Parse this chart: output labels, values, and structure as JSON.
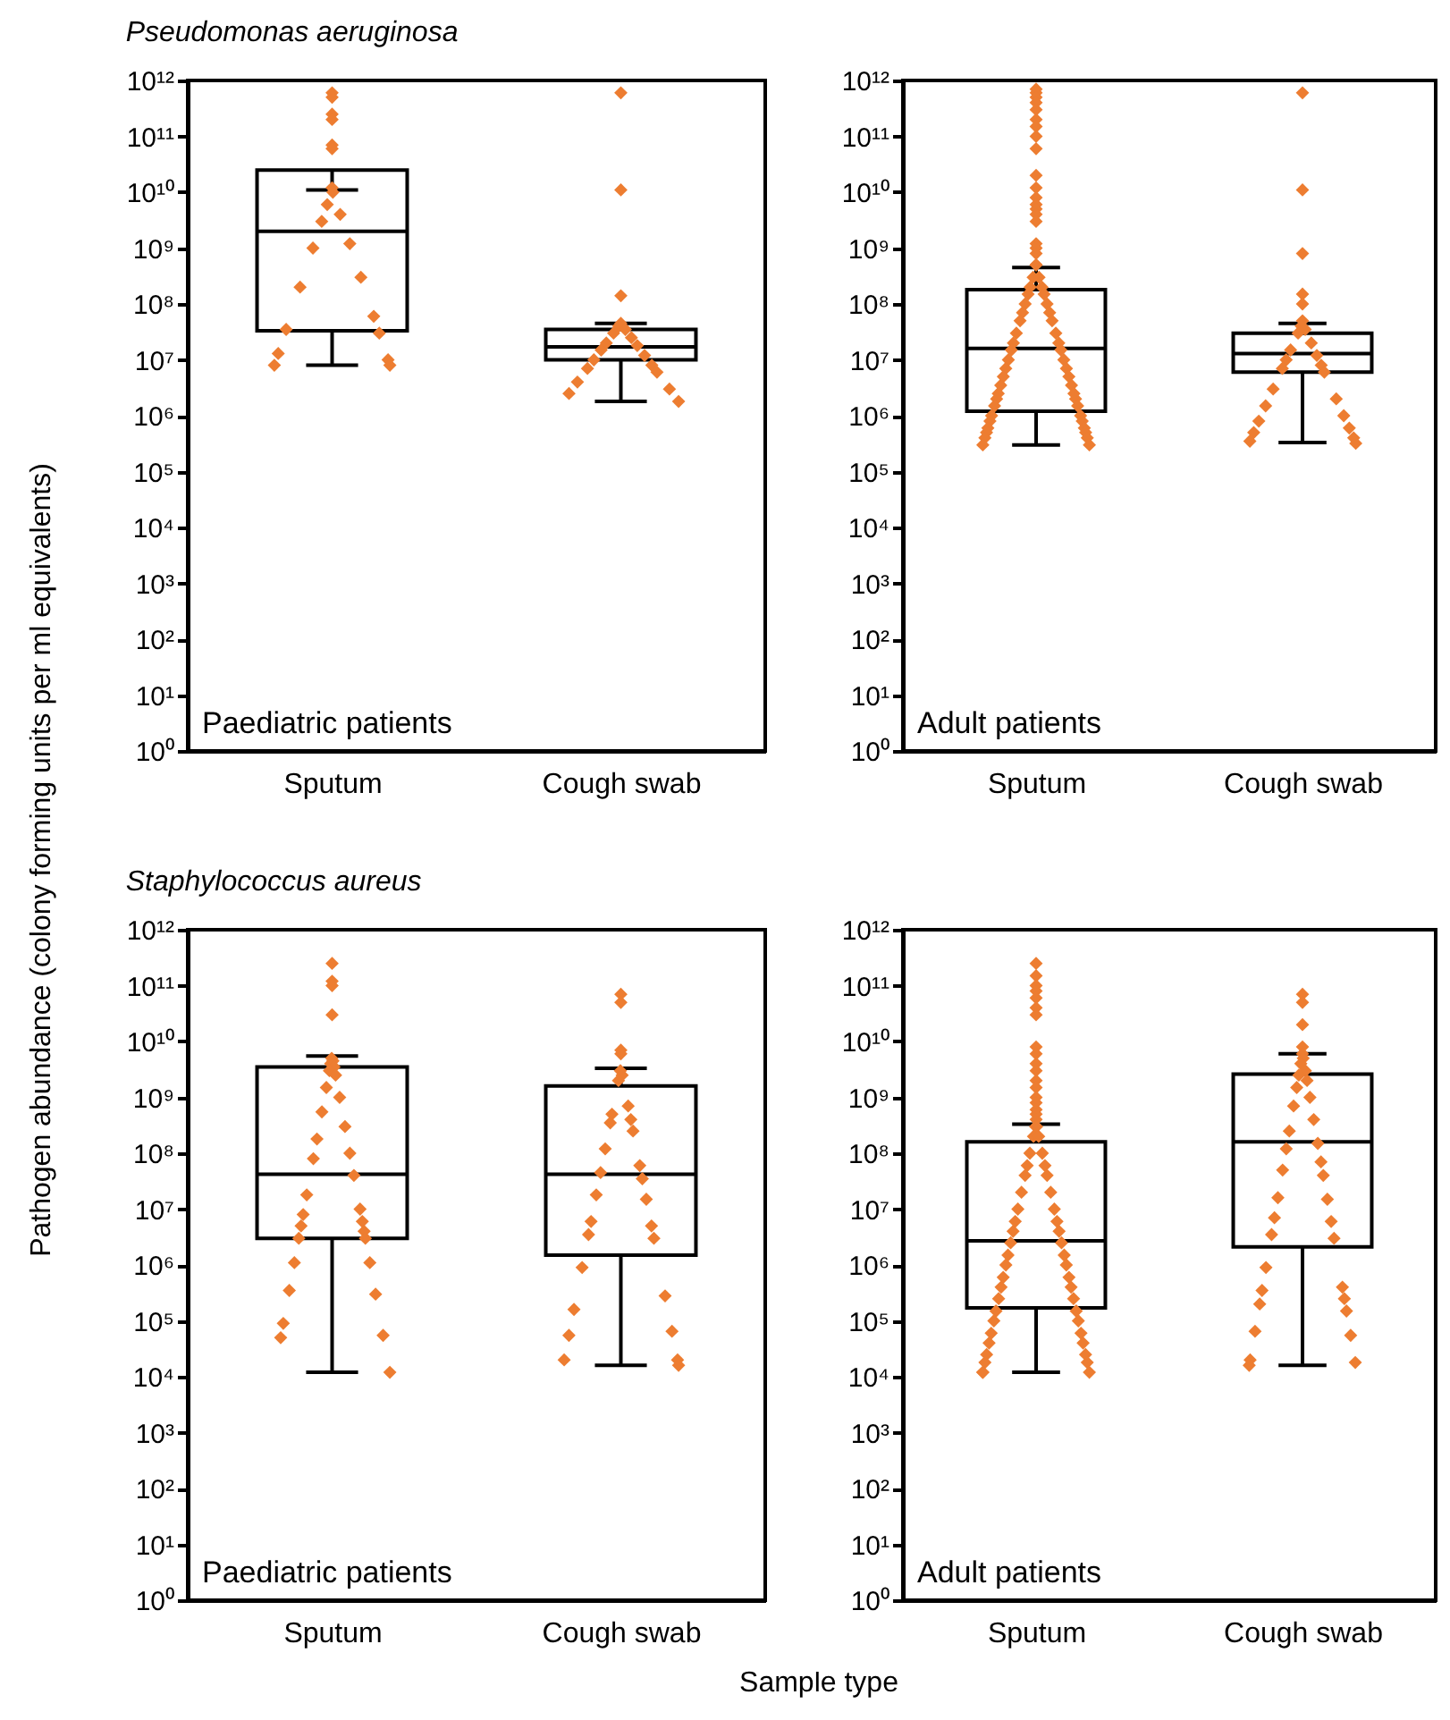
{
  "chart_data": [
    {
      "type": "box",
      "title": "Pseudomonas aeruginosa",
      "ylabel": "Pathogen abundance (colony forming units per ml equivalents)",
      "categories": [
        "Sputum",
        "Cough swab"
      ],
      "annotations": [
        "Paediatric patients"
      ],
      "log": true,
      "grid": false,
      "marker": "diamond",
      "ylim": [
        1,
        1000000000000.0
      ],
      "yticks": [
        {
          "value": 1,
          "label": "10⁰"
        },
        {
          "value": 10,
          "label": "10¹"
        },
        {
          "value": 100,
          "label": "10²"
        },
        {
          "value": 1000.0,
          "label": "10³"
        },
        {
          "value": 10000.0,
          "label": "10⁴"
        },
        {
          "value": 100000.0,
          "label": "10⁵"
        },
        {
          "value": 1000000.0,
          "label": "10⁶"
        },
        {
          "value": 10000000.0,
          "label": "10⁷"
        },
        {
          "value": 100000000.0,
          "label": "10⁸"
        },
        {
          "value": 1000000000.0,
          "label": "10⁹"
        },
        {
          "value": 10000000000.0,
          "label": "10¹⁰"
        },
        {
          "value": 100000000000.0,
          "label": "10¹¹"
        },
        {
          "value": 1000000000000.0,
          "label": "10¹²"
        }
      ],
      "boxes": [
        {
          "low": 8000000.0,
          "q1": 33000000.0,
          "median": 2000000000.0,
          "q3": 25000000000.0,
          "high": 11000000000.0
        },
        {
          "low": 1800000.0,
          "q1": 10000000.0,
          "median": 17000000.0,
          "q3": 35000000.0,
          "high": 45000000.0
        }
      ],
      "series": [
        {
          "type": "scatter",
          "color": "#ed7d31",
          "x": [
            "Sputum",
            "Sputum",
            "Sputum",
            "Sputum",
            "Sputum",
            "Sputum",
            "Sputum",
            "Sputum",
            "Sputum",
            "Sputum",
            "Sputum",
            "Sputum",
            "Sputum",
            "Sputum",
            "Sputum",
            "Sputum",
            "Sputum",
            "Sputum",
            "Sputum",
            "Sputum",
            "Sputum",
            "Sputum",
            "Cough swab",
            "Cough swab",
            "Cough swab",
            "Cough swab",
            "Cough swab",
            "Cough swab",
            "Cough swab",
            "Cough swab",
            "Cough swab",
            "Cough swab",
            "Cough swab",
            "Cough swab",
            "Cough swab",
            "Cough swab",
            "Cough swab",
            "Cough swab",
            "Cough swab",
            "Cough swab",
            "Cough swab",
            "Cough swab"
          ],
          "values": [
            600000000000.0,
            500000000000.0,
            250000000000.0,
            200000000000.0,
            70000000000.0,
            60000000000.0,
            12000000000.0,
            10000000000.0,
            6000000000.0,
            4000000000.0,
            3000000000.0,
            1200000000.0,
            1000000000.0,
            300000000.0,
            200000000.0,
            60000000.0,
            35000000.0,
            30000000.0,
            13000000.0,
            10000000.0,
            8000000.0,
            8000000.0,
            600000000000.0,
            11000000000.0,
            140000000.0,
            45000000.0,
            40000000.0,
            35000000.0,
            30000000.0,
            25000000.0,
            20000000.0,
            18000000.0,
            15000000.0,
            12000000.0,
            10000000.0,
            8000000.0,
            7000000.0,
            6000000.0,
            4000000.0,
            3000000.0,
            2500000.0,
            1800000.0
          ]
        }
      ]
    },
    {
      "type": "box",
      "categories": [
        "Sputum",
        "Cough swab"
      ],
      "annotations": [
        "Adult patients"
      ],
      "log": true,
      "grid": false,
      "marker": "diamond",
      "ylim": [
        1,
        1000000000000.0
      ],
      "yticks": [
        {
          "value": 1,
          "label": "10⁰"
        },
        {
          "value": 10,
          "label": "10¹"
        },
        {
          "value": 100,
          "label": "10²"
        },
        {
          "value": 1000.0,
          "label": "10³"
        },
        {
          "value": 10000.0,
          "label": "10⁴"
        },
        {
          "value": 100000.0,
          "label": "10⁵"
        },
        {
          "value": 1000000.0,
          "label": "10⁶"
        },
        {
          "value": 10000000.0,
          "label": "10⁷"
        },
        {
          "value": 100000000.0,
          "label": "10⁸"
        },
        {
          "value": 1000000000.0,
          "label": "10⁹"
        },
        {
          "value": 10000000000.0,
          "label": "10¹⁰"
        },
        {
          "value": 100000000000.0,
          "label": "10¹¹"
        },
        {
          "value": 1000000000000.0,
          "label": "10¹²"
        }
      ],
      "boxes": [
        {
          "low": 300000.0,
          "q1": 1200000.0,
          "median": 16000000.0,
          "q3": 180000000.0,
          "high": 450000000.0
        },
        {
          "low": 330000.0,
          "q1": 6000000.0,
          "median": 13000000.0,
          "q3": 30000000.0,
          "high": 45000000.0
        }
      ],
      "series": [
        {
          "type": "scatter",
          "color": "#ed7d31",
          "x": [
            "Sputum",
            "Sputum",
            "Sputum",
            "Sputum",
            "Sputum",
            "Sputum",
            "Sputum",
            "Sputum",
            "Sputum",
            "Sputum",
            "Sputum",
            "Sputum",
            "Sputum",
            "Sputum",
            "Sputum",
            "Sputum",
            "Sputum",
            "Sputum",
            "Sputum",
            "Sputum",
            "Sputum",
            "Sputum",
            "Sputum",
            "Sputum",
            "Sputum",
            "Sputum",
            "Sputum",
            "Sputum",
            "Sputum",
            "Sputum",
            "Sputum",
            "Sputum",
            "Sputum",
            "Sputum",
            "Sputum",
            "Sputum",
            "Sputum",
            "Sputum",
            "Sputum",
            "Sputum",
            "Sputum",
            "Sputum",
            "Sputum",
            "Sputum",
            "Sputum",
            "Sputum",
            "Sputum",
            "Sputum",
            "Sputum",
            "Sputum",
            "Sputum",
            "Sputum",
            "Sputum",
            "Sputum",
            "Sputum",
            "Sputum",
            "Sputum",
            "Sputum",
            "Sputum",
            "Sputum",
            "Sputum",
            "Sputum",
            "Sputum",
            "Sputum",
            "Sputum",
            "Cough swab",
            "Cough swab",
            "Cough swab",
            "Cough swab",
            "Cough swab",
            "Cough swab",
            "Cough swab",
            "Cough swab",
            "Cough swab",
            "Cough swab",
            "Cough swab",
            "Cough swab",
            "Cough swab",
            "Cough swab",
            "Cough swab",
            "Cough swab",
            "Cough swab",
            "Cough swab",
            "Cough swab",
            "Cough swab",
            "Cough swab",
            "Cough swab",
            "Cough swab",
            "Cough swab",
            "Cough swab",
            "Cough swab"
          ],
          "values": [
            700000000000.0,
            600000000000.0,
            500000000000.0,
            400000000000.0,
            300000000000.0,
            200000000000.0,
            150000000000.0,
            100000000000.0,
            60000000000.0,
            20000000000.0,
            12000000000.0,
            8000000000.0,
            6000000000.0,
            5000000000.0,
            4000000000.0,
            3000000000.0,
            1200000000.0,
            1000000000.0,
            800000000.0,
            500000000.0,
            500000000.0,
            300000000.0,
            300000000.0,
            200000000.0,
            200000000.0,
            150000000.0,
            150000000.0,
            100000000.0,
            100000000.0,
            70000000.0,
            70000000.0,
            50000000.0,
            50000000.0,
            30000000.0,
            30000000.0,
            20000000.0,
            20000000.0,
            15000000.0,
            15000000.0,
            10000000.0,
            10000000.0,
            7000000.0,
            7000000.0,
            5000000.0,
            5000000.0,
            3500000.0,
            3500000.0,
            2500000.0,
            2500000.0,
            2000000.0,
            2000000.0,
            1500000.0,
            1500000.0,
            1000000.0,
            1000000.0,
            800000.0,
            800000.0,
            600000.0,
            600000.0,
            500000.0,
            500000.0,
            400000.0,
            400000.0,
            300000.0,
            300000.0,
            600000000000.0,
            11000000000.0,
            800000000.0,
            150000000.0,
            100000000.0,
            50000000.0,
            40000000.0,
            35000000.0,
            30000000.0,
            20000000.0,
            15000000.0,
            12000000.0,
            10000000.0,
            8000000.0,
            7000000.0,
            6000000.0,
            3000000.0,
            2000000.0,
            1500000.0,
            1000000.0,
            800000.0,
            600000.0,
            500000.0,
            400000.0,
            350000.0,
            320000.0
          ]
        }
      ]
    },
    {
      "type": "box",
      "title": "Staphylococcus aureus",
      "xlabel": "Sample type",
      "categories": [
        "Sputum",
        "Cough swab"
      ],
      "annotations": [
        "Paediatric patients"
      ],
      "log": true,
      "grid": false,
      "marker": "diamond",
      "ylim": [
        1,
        1000000000000.0
      ],
      "yticks": [
        {
          "value": 1,
          "label": "10⁰"
        },
        {
          "value": 10,
          "label": "10¹"
        },
        {
          "value": 100,
          "label": "10²"
        },
        {
          "value": 1000.0,
          "label": "10³"
        },
        {
          "value": 10000.0,
          "label": "10⁴"
        },
        {
          "value": 100000.0,
          "label": "10⁵"
        },
        {
          "value": 1000000.0,
          "label": "10⁶"
        },
        {
          "value": 10000000.0,
          "label": "10⁷"
        },
        {
          "value": 100000000.0,
          "label": "10⁸"
        },
        {
          "value": 1000000000.0,
          "label": "10⁹"
        },
        {
          "value": 10000000000.0,
          "label": "10¹⁰"
        },
        {
          "value": 100000000000.0,
          "label": "10¹¹"
        },
        {
          "value": 1000000000000.0,
          "label": "10¹²"
        }
      ],
      "boxes": [
        {
          "low": 12000.0,
          "q1": 3000000.0,
          "median": 42000000.0,
          "q3": 3500000000.0,
          "high": 5500000000.0
        },
        {
          "low": 16000.0,
          "q1": 1500000.0,
          "median": 42000000.0,
          "q3": 1600000000.0,
          "high": 3300000000.0
        }
      ],
      "series": [
        {
          "type": "scatter",
          "color": "#ed7d31",
          "x": [
            "Sputum",
            "Sputum",
            "Sputum",
            "Sputum",
            "Sputum",
            "Sputum",
            "Sputum",
            "Sputum",
            "Sputum",
            "Sputum",
            "Sputum",
            "Sputum",
            "Sputum",
            "Sputum",
            "Sputum",
            "Sputum",
            "Sputum",
            "Sputum",
            "Sputum",
            "Sputum",
            "Sputum",
            "Sputum",
            "Sputum",
            "Sputum",
            "Sputum",
            "Sputum",
            "Sputum",
            "Sputum",
            "Sputum",
            "Sputum",
            "Sputum",
            "Sputum",
            "Sputum",
            "Sputum",
            "Cough swab",
            "Cough swab",
            "Cough swab",
            "Cough swab",
            "Cough swab",
            "Cough swab",
            "Cough swab",
            "Cough swab",
            "Cough swab",
            "Cough swab",
            "Cough swab",
            "Cough swab",
            "Cough swab",
            "Cough swab",
            "Cough swab",
            "Cough swab",
            "Cough swab",
            "Cough swab",
            "Cough swab",
            "Cough swab",
            "Cough swab",
            "Cough swab",
            "Cough swab",
            "Cough swab",
            "Cough swab",
            "Cough swab",
            "Cough swab",
            "Cough swab",
            "Cough swab",
            "Cough swab"
          ],
          "values": [
            250000000000.0,
            120000000000.0,
            100000000000.0,
            30000000000.0,
            5000000000.0,
            4500000000.0,
            4000000000.0,
            3500000000.0,
            3000000000.0,
            2500000000.0,
            1500000000.0,
            1000000000.0,
            550000000.0,
            300000000.0,
            180000000.0,
            100000000.0,
            80000000.0,
            40000000.0,
            18000000.0,
            10000000.0,
            8000000.0,
            6000000.0,
            5000000.0,
            4000000.0,
            3000000.0,
            3000000.0,
            1100000.0,
            1100000.0,
            350000.0,
            300000.0,
            90000.0,
            55000.0,
            50000.0,
            12000.0,
            70000000000.0,
            50000000000.0,
            7000000000.0,
            6000000000.0,
            3000000000.0,
            2500000000.0,
            2000000000.0,
            700000000.0,
            500000000.0,
            400000000.0,
            350000000.0,
            250000000.0,
            120000000.0,
            60000000.0,
            45000000.0,
            35000000.0,
            18000000.0,
            15000000.0,
            6000000.0,
            5000000.0,
            3500000.0,
            3000000.0,
            900000.0,
            280000.0,
            160000.0,
            65000.0,
            55000.0,
            20000.0,
            20000.0,
            16000.0
          ]
        }
      ]
    },
    {
      "type": "box",
      "categories": [
        "Sputum",
        "Cough swab"
      ],
      "annotations": [
        "Adult patients"
      ],
      "log": true,
      "grid": false,
      "marker": "diamond",
      "ylim": [
        1,
        1000000000000.0
      ],
      "yticks": [
        {
          "value": 1,
          "label": "10⁰"
        },
        {
          "value": 10,
          "label": "10¹"
        },
        {
          "value": 100,
          "label": "10²"
        },
        {
          "value": 1000.0,
          "label": "10³"
        },
        {
          "value": 10000.0,
          "label": "10⁴"
        },
        {
          "value": 100000.0,
          "label": "10⁵"
        },
        {
          "value": 1000000.0,
          "label": "10⁶"
        },
        {
          "value": 10000000.0,
          "label": "10⁷"
        },
        {
          "value": 100000000.0,
          "label": "10⁸"
        },
        {
          "value": 1000000000.0,
          "label": "10⁹"
        },
        {
          "value": 10000000000.0,
          "label": "10¹⁰"
        },
        {
          "value": 100000000000.0,
          "label": "10¹¹"
        },
        {
          "value": 1000000000000.0,
          "label": "10¹²"
        }
      ],
      "boxes": [
        {
          "low": 12000.0,
          "q1": 170000.0,
          "median": 2700000.0,
          "q3": 160000000.0,
          "high": 330000000.0
        },
        {
          "low": 16000.0,
          "q1": 2100000.0,
          "median": 160000000.0,
          "q3": 2600000000.0,
          "high": 6000000000.0
        }
      ],
      "series": [
        {
          "type": "scatter",
          "color": "#ed7d31",
          "x": [
            "Sputum",
            "Sputum",
            "Sputum",
            "Sputum",
            "Sputum",
            "Sputum",
            "Sputum",
            "Sputum",
            "Sputum",
            "Sputum",
            "Sputum",
            "Sputum",
            "Sputum",
            "Sputum",
            "Sputum",
            "Sputum",
            "Sputum",
            "Sputum",
            "Sputum",
            "Sputum",
            "Sputum",
            "Sputum",
            "Sputum",
            "Sputum",
            "Sputum",
            "Sputum",
            "Sputum",
            "Sputum",
            "Sputum",
            "Sputum",
            "Sputum",
            "Sputum",
            "Sputum",
            "Sputum",
            "Sputum",
            "Sputum",
            "Sputum",
            "Sputum",
            "Sputum",
            "Sputum",
            "Sputum",
            "Sputum",
            "Sputum",
            "Sputum",
            "Sputum",
            "Sputum",
            "Sputum",
            "Sputum",
            "Sputum",
            "Sputum",
            "Sputum",
            "Sputum",
            "Sputum",
            "Sputum",
            "Sputum",
            "Sputum",
            "Sputum",
            "Sputum",
            "Sputum",
            "Sputum",
            "Sputum",
            "Sputum",
            "Sputum",
            "Cough swab",
            "Cough swab",
            "Cough swab",
            "Cough swab",
            "Cough swab",
            "Cough swab",
            "Cough swab",
            "Cough swab",
            "Cough swab",
            "Cough swab",
            "Cough swab",
            "Cough swab",
            "Cough swab",
            "Cough swab",
            "Cough swab",
            "Cough swab",
            "Cough swab",
            "Cough swab",
            "Cough swab",
            "Cough swab",
            "Cough swab",
            "Cough swab",
            "Cough swab",
            "Cough swab",
            "Cough swab",
            "Cough swab",
            "Cough swab",
            "Cough swab",
            "Cough swab",
            "Cough swab",
            "Cough swab",
            "Cough swab",
            "Cough swab",
            "Cough swab",
            "Cough swab",
            "Cough swab",
            "Cough swab"
          ],
          "values": [
            250000000000.0,
            150000000000.0,
            100000000000.0,
            80000000000.0,
            60000000000.0,
            40000000000.0,
            30000000000.0,
            8000000000.0,
            6000000000.0,
            4000000000.0,
            3000000000.0,
            2000000000.0,
            1500000000.0,
            1000000000.0,
            800000000.0,
            600000000.0,
            500000000.0,
            400000000.0,
            300000000.0,
            300000000.0,
            200000000.0,
            200000000.0,
            100000000.0,
            100000000.0,
            60000000.0,
            60000000.0,
            40000000.0,
            40000000.0,
            20000000.0,
            20000000.0,
            10000000.0,
            10000000.0,
            6000000.0,
            6000000.0,
            4000000.0,
            4000000.0,
            2500000.0,
            2500000.0,
            1500000.0,
            1500000.0,
            1000000.0,
            1000000.0,
            600000.0,
            600000.0,
            400000.0,
            400000.0,
            250000.0,
            250000.0,
            150000.0,
            150000.0,
            100000.0,
            100000.0,
            60000.0,
            60000.0,
            40000.0,
            40000.0,
            25000.0,
            25000.0,
            18000.0,
            18000.0,
            12000.0,
            12000.0,
            12000.0,
            70000000000.0,
            50000000000.0,
            20000000000.0,
            8000000000.0,
            6000000000.0,
            5000000000.0,
            4000000000.0,
            3000000000.0,
            2500000000.0,
            2000000000.0,
            1500000000.0,
            1000000000.0,
            700000000.0,
            400000000.0,
            250000000.0,
            150000000.0,
            120000000.0,
            70000000.0,
            50000000.0,
            40000000.0,
            16000000.0,
            15000000.0,
            7000000.0,
            6000000.0,
            3500000.0,
            3000000.0,
            900000.0,
            400000.0,
            350000.0,
            250000.0,
            200000.0,
            150000.0,
            65000.0,
            55000.0,
            20000.0,
            18000.0,
            16000.0
          ]
        }
      ]
    }
  ]
}
